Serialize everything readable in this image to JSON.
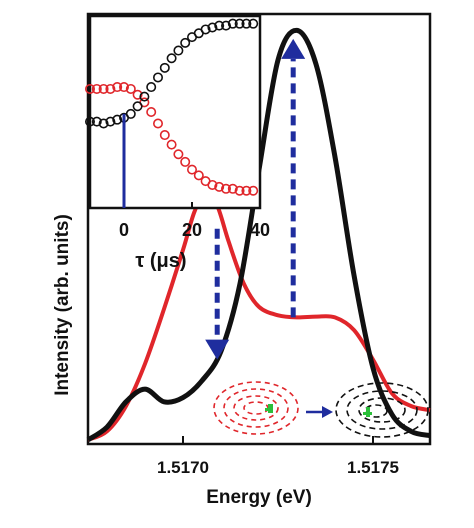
{
  "chart_data": [
    {
      "type": "line",
      "xlabel": "Energy (eV)",
      "ylabel": "Intensity (arb. units)",
      "xlim": [
        1.51675,
        1.51765
      ],
      "ylim": [
        0,
        1.0
      ],
      "x_ticks": [
        1.517,
        1.5175
      ],
      "x_tick_labels": [
        "1.5170",
        "1.5175"
      ],
      "y_ticks": [],
      "grid": false,
      "legend": "none",
      "series": [
        {
          "color": "#e0262b",
          "x": [
            1.51675,
            1.5168,
            1.51685,
            1.5169,
            1.51695,
            1.517,
            1.51703,
            1.51706,
            1.51709,
            1.51712,
            1.51716,
            1.5172,
            1.51725,
            1.5173,
            1.51735,
            1.5174,
            1.51745,
            1.5175,
            1.51755,
            1.5176,
            1.51765
          ],
          "y": [
            0.01,
            0.03,
            0.09,
            0.19,
            0.32,
            0.46,
            0.55,
            0.6,
            0.565,
            0.48,
            0.38,
            0.325,
            0.305,
            0.3,
            0.302,
            0.3,
            0.27,
            0.2,
            0.12,
            0.09,
            0.08
          ]
        },
        {
          "color": "#111111",
          "x": [
            1.51675,
            1.5168,
            1.51685,
            1.5169,
            1.51695,
            1.517,
            1.51705,
            1.5171,
            1.51715,
            1.5172,
            1.51725,
            1.5173,
            1.51735,
            1.5174,
            1.51745,
            1.5175,
            1.51755,
            1.5176,
            1.51765
          ],
          "y": [
            0.01,
            0.04,
            0.1,
            0.13,
            0.1,
            0.11,
            0.15,
            0.22,
            0.38,
            0.65,
            0.91,
            0.98,
            0.9,
            0.68,
            0.4,
            0.18,
            0.07,
            0.03,
            0.02
          ]
        }
      ],
      "arrows": [
        {
          "direction": "down",
          "x": 1.51709,
          "y_from": 0.51,
          "y_to": 0.2,
          "color": "#1f2d9e"
        },
        {
          "direction": "up",
          "x": 1.51729,
          "y_from": 0.3,
          "y_to": 0.96,
          "color": "#1f2d9e"
        }
      ]
    },
    {
      "type": "scatter",
      "xlabel": "τ (μs)",
      "xlim": [
        -10,
        40
      ],
      "ylim": [
        0,
        1.0
      ],
      "x_ticks": [
        0,
        20,
        40
      ],
      "x_tick_labels": [
        "0",
        "20",
        "40"
      ],
      "grid": false,
      "legend": "none",
      "marker_line_x": 0,
      "marker_line_color": "#1f2d9e",
      "series": [
        {
          "color": "#e0262b",
          "x": [
            -10,
            -8,
            -6,
            -4,
            -2,
            0,
            2,
            4,
            6,
            8,
            10,
            12,
            14,
            16,
            18,
            20,
            22,
            24,
            26,
            28,
            30,
            32,
            34,
            36,
            38
          ],
          "y": [
            0.62,
            0.62,
            0.62,
            0.62,
            0.63,
            0.63,
            0.62,
            0.59,
            0.55,
            0.5,
            0.44,
            0.38,
            0.33,
            0.28,
            0.24,
            0.2,
            0.17,
            0.14,
            0.12,
            0.11,
            0.1,
            0.1,
            0.09,
            0.09,
            0.09
          ]
        },
        {
          "color": "#111111",
          "x": [
            -10,
            -8,
            -6,
            -4,
            -2,
            0,
            2,
            4,
            6,
            8,
            10,
            12,
            14,
            16,
            18,
            20,
            22,
            24,
            26,
            28,
            30,
            32,
            34,
            36,
            38
          ],
          "y": [
            0.45,
            0.45,
            0.44,
            0.45,
            0.46,
            0.47,
            0.49,
            0.53,
            0.58,
            0.63,
            0.68,
            0.73,
            0.78,
            0.82,
            0.86,
            0.89,
            0.91,
            0.93,
            0.94,
            0.95,
            0.95,
            0.96,
            0.96,
            0.96,
            0.96
          ]
        }
      ]
    }
  ]
}
